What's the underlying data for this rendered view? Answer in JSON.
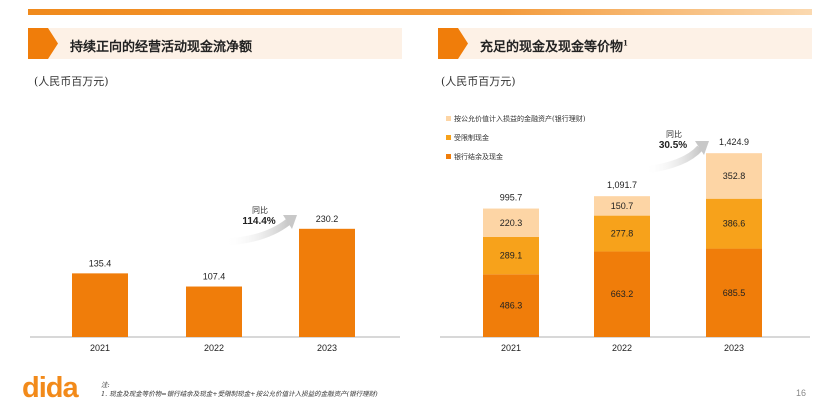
{
  "left": {
    "title": "持续正向的经营活动现金流净额",
    "unit": "(人民币百万元)",
    "yoy_label": "同比",
    "yoy_value": "114.4%"
  },
  "right": {
    "title": "充足的现金及现金等价物",
    "title_sup": "1",
    "unit": "(人民币百万元)",
    "yoy_label": "同比",
    "yoy_value": "30.5%"
  },
  "footer": {
    "logo": "dida",
    "note_label": "注:",
    "note": "1. 现金及现金等价物=银行结余及现金+受限制现金+按公允价值计入损益的金融资产(银行理财)",
    "page": "16"
  },
  "colors": {
    "accent": "#F07D0A",
    "bank": "#F07D0A",
    "restricted": "#F7A21B",
    "fvtpl": "#FDD5A5"
  },
  "chart_data": [
    {
      "type": "bar",
      "title": "持续正向的经营活动现金流净额",
      "categories": [
        "2021",
        "2022",
        "2023"
      ],
      "values": [
        135.4,
        107.4,
        230.2
      ],
      "labels": [
        "135.4",
        "107.4",
        "230.2"
      ],
      "ylim": [
        0,
        260
      ]
    },
    {
      "type": "bar",
      "stacked": true,
      "title": "充足的现金及现金等价物",
      "categories": [
        "2021",
        "2022",
        "2023"
      ],
      "series": [
        {
          "name": "银行结余及现金",
          "values": [
            486.3,
            663.2,
            685.5
          ],
          "labels": [
            "486.3",
            "663.2",
            "685.5"
          ]
        },
        {
          "name": "受限制现金",
          "values": [
            289.1,
            277.8,
            386.6
          ],
          "labels": [
            "289.1",
            "277.8",
            "386.6"
          ]
        },
        {
          "name": "按公允价值计入损益的金融资产(银行理财)",
          "values": [
            220.3,
            150.7,
            352.8
          ],
          "labels": [
            "220.3",
            "150.7",
            "352.8"
          ]
        }
      ],
      "totals": [
        995.7,
        1091.7,
        1424.9
      ],
      "total_labels": [
        "995.7",
        "1,091.7",
        "1,424.9"
      ],
      "legend": "top-left"
    }
  ]
}
